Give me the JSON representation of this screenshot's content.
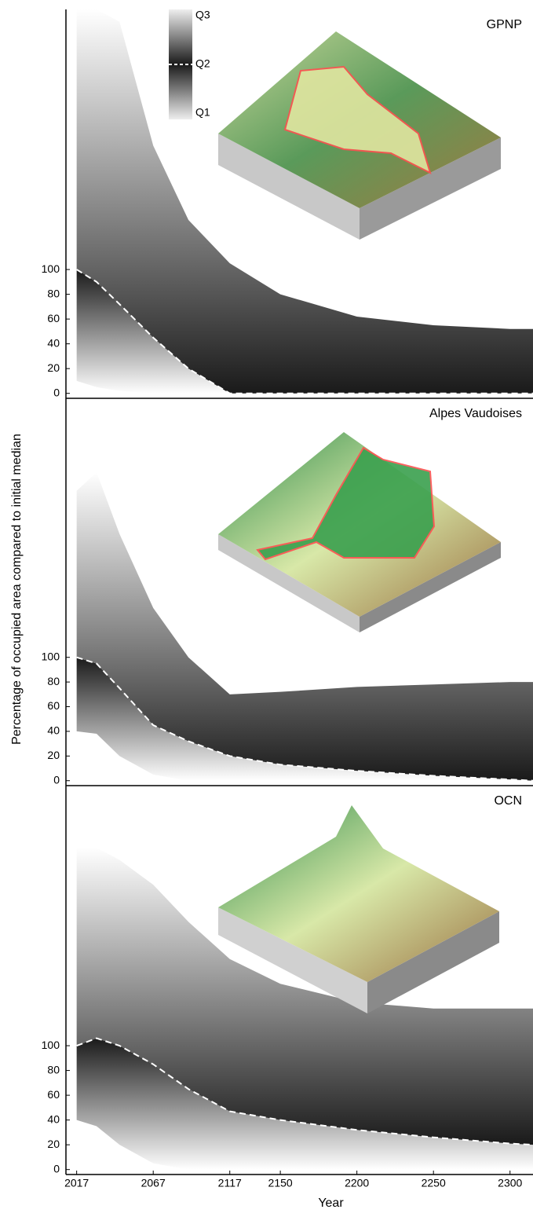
{
  "chart_data": [
    {
      "type": "line",
      "title": "GPNP",
      "legend": "upper-left",
      "band_color": "#1a1a1a",
      "x": [
        2017,
        2030,
        2045,
        2067,
        2090,
        2117,
        2150,
        2200,
        2250,
        2300,
        2315
      ],
      "series": [
        {
          "name": "Q1",
          "color": "#ffffff",
          "values": [
            10,
            5,
            2,
            0,
            0,
            0,
            0,
            0,
            0,
            0,
            0
          ]
        },
        {
          "name": "Q2",
          "color": "#ffffff",
          "values": [
            100,
            90,
            72,
            45,
            20,
            0,
            0,
            0,
            0,
            0,
            0
          ]
        },
        {
          "name": "Q3",
          "color": "#ffffff",
          "values": [
            310,
            310,
            300,
            200,
            140,
            105,
            80,
            62,
            55,
            52,
            52
          ]
        }
      ],
      "xlim": [
        2010,
        2315
      ],
      "ylim": [
        -4,
        310
      ],
      "yticks": [
        0,
        20,
        40,
        60,
        80,
        100
      ]
    },
    {
      "type": "line",
      "title": "Alpes Vaudoises",
      "band_color": "#1a1a1a",
      "ylabel": "Percentage of occupied area compared to initial median",
      "x": [
        2017,
        2030,
        2045,
        2067,
        2090,
        2117,
        2150,
        2200,
        2250,
        2300,
        2315
      ],
      "series": [
        {
          "name": "Q1",
          "color": "#ffffff",
          "values": [
            40,
            38,
            20,
            5,
            0,
            0,
            0,
            0,
            0,
            0,
            0
          ]
        },
        {
          "name": "Q2",
          "color": "#ffffff",
          "values": [
            100,
            95,
            75,
            45,
            32,
            20,
            13,
            8,
            4,
            1,
            0
          ]
        },
        {
          "name": "Q3",
          "color": "#ffffff",
          "values": [
            235,
            250,
            200,
            140,
            100,
            70,
            72,
            76,
            78,
            80,
            80
          ]
        }
      ],
      "xlim": [
        2010,
        2315
      ],
      "ylim": [
        -4,
        310
      ],
      "yticks": [
        0,
        20,
        40,
        60,
        80,
        100
      ]
    },
    {
      "type": "line",
      "title": "OCN",
      "band_color": "#1a1a1a",
      "xlabel": "Year",
      "x": [
        2017,
        2030,
        2045,
        2067,
        2090,
        2117,
        2150,
        2200,
        2250,
        2300,
        2315
      ],
      "series": [
        {
          "name": "Q1",
          "color": "#ffffff",
          "values": [
            40,
            35,
            20,
            5,
            0,
            0,
            0,
            0,
            0,
            0,
            0
          ]
        },
        {
          "name": "Q2",
          "color": "#ffffff",
          "values": [
            100,
            106,
            100,
            85,
            65,
            47,
            40,
            32,
            26,
            21,
            20
          ]
        },
        {
          "name": "Q3",
          "color": "#ffffff",
          "values": [
            260,
            260,
            250,
            230,
            200,
            170,
            150,
            135,
            130,
            130,
            130
          ]
        }
      ],
      "xlim": [
        2010,
        2315
      ],
      "ylim": [
        -4,
        310
      ],
      "yticks": [
        0,
        20,
        40,
        60,
        80,
        100
      ],
      "xticks": [
        2017,
        2067,
        2117,
        2150,
        2200,
        2250,
        2300
      ]
    }
  ]
}
